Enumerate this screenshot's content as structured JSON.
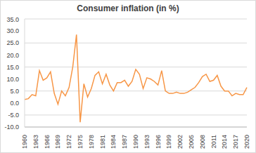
{
  "chart_data": {
    "type": "line",
    "title": "Consumer inflation (in %)",
    "categories": [
      "1960",
      null,
      null,
      "1963",
      null,
      null,
      "1966",
      null,
      null,
      "1969",
      null,
      null,
      "1972",
      null,
      null,
      "1975",
      null,
      null,
      "1978",
      null,
      null,
      "1981",
      null,
      null,
      "1984",
      null,
      null,
      "1987",
      null,
      null,
      "1990",
      null,
      null,
      "1993",
      null,
      null,
      "1996",
      null,
      null,
      "1999",
      null,
      null,
      "2002",
      null,
      null,
      "2005",
      null,
      null,
      "2008",
      null,
      null,
      "2011",
      null,
      null,
      "2014",
      null,
      null,
      "2017",
      null,
      null,
      "2020"
    ],
    "values": [
      1.5,
      1.8,
      3.5,
      3.0,
      13.5,
      9.5,
      10.5,
      13.0,
      4.0,
      -0.5,
      5.0,
      3.0,
      6.5,
      15.0,
      28.5,
      -8.0,
      8.0,
      2.5,
      6.0,
      11.5,
      13.0,
      8.0,
      12.0,
      7.5,
      5.0,
      8.5,
      8.5,
      9.5,
      7.0,
      9.0,
      14.0,
      12.0,
      6.0,
      10.5,
      10.0,
      9.0,
      7.5,
      13.5,
      5.0,
      4.0,
      4.0,
      4.5,
      4.0,
      4.0,
      4.5,
      5.5,
      6.5,
      8.5,
      11.0,
      12.0,
      9.0,
      9.5,
      11.5,
      7.0,
      5.0,
      5.0,
      3.0,
      4.0,
      3.5,
      3.5,
      6.5
    ],
    "color": "#F79646",
    "ylim": [
      -10,
      35
    ],
    "yticks": [
      {
        "value": -10,
        "label": "-10.0"
      },
      {
        "value": -5,
        "label": "-5.0"
      },
      {
        "value": 0,
        "label": "0.0"
      },
      {
        "value": 5,
        "label": "5.0"
      },
      {
        "value": 10,
        "label": "10.0"
      },
      {
        "value": 15,
        "label": "15.0"
      },
      {
        "value": 20,
        "label": "20.0"
      },
      {
        "value": 25,
        "label": "25.0"
      },
      {
        "value": 30,
        "label": "30.0"
      },
      {
        "value": 35,
        "label": "35.0"
      }
    ],
    "grid": true
  }
}
